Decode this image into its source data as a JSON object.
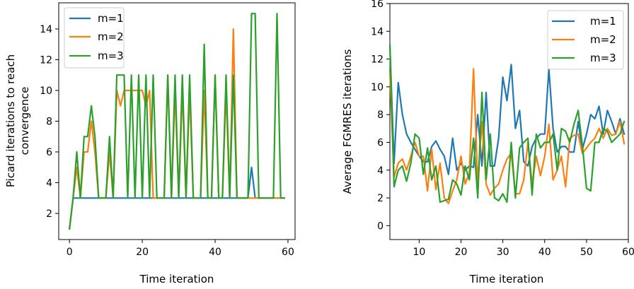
{
  "chart_data": [
    {
      "type": "line",
      "xlabel": "Time iteration",
      "ylabel_lines": [
        "Picard iterations to reach",
        "convergence"
      ],
      "xlim": [
        -2.95,
        61.95
      ],
      "ylim": [
        0.3,
        15.7
      ],
      "xticks": [
        0,
        20,
        40,
        60
      ],
      "yticks": [
        2,
        4,
        6,
        8,
        10,
        12,
        14
      ],
      "legend": "top-left",
      "series": [
        {
          "name": "m=1",
          "color": "#1f77b4",
          "x": [
            0,
            1,
            2,
            3,
            4,
            5,
            6,
            7,
            8,
            9,
            10,
            11,
            12,
            13,
            14,
            15,
            16,
            17,
            18,
            19,
            20,
            21,
            22,
            23,
            24,
            25,
            26,
            27,
            28,
            29,
            30,
            31,
            32,
            33,
            34,
            35,
            36,
            37,
            38,
            39,
            40,
            41,
            42,
            43,
            44,
            45,
            46,
            47,
            48,
            49,
            50,
            51,
            52,
            53,
            54,
            55,
            56,
            57,
            58,
            59
          ],
          "y": [
            1,
            3,
            3,
            3,
            3,
            3,
            3,
            3,
            3,
            3,
            3,
            3,
            3,
            3,
            3,
            3,
            3,
            3,
            3,
            3,
            3,
            3,
            3,
            3,
            3,
            3,
            3,
            3,
            3,
            3,
            3,
            3,
            3,
            3,
            3,
            3,
            3,
            3,
            3,
            3,
            3,
            3,
            3,
            3,
            3,
            3,
            3,
            3,
            3,
            3,
            5,
            3,
            3,
            3,
            3,
            3,
            3,
            3,
            3,
            3
          ]
        },
        {
          "name": "m=2",
          "color": "#ff7f0e",
          "x": [
            0,
            1,
            2,
            3,
            4,
            5,
            6,
            7,
            8,
            9,
            10,
            11,
            12,
            13,
            14,
            15,
            16,
            17,
            18,
            19,
            20,
            21,
            22,
            23,
            24,
            25,
            26,
            27,
            28,
            29,
            30,
            31,
            32,
            33,
            34,
            35,
            36,
            37,
            38,
            39,
            40,
            41,
            42,
            43,
            44,
            45,
            46,
            47,
            48,
            49,
            50,
            51,
            52,
            53,
            54,
            55,
            56,
            57,
            58,
            59
          ],
          "y": [
            1,
            3,
            5,
            3,
            6,
            6,
            8,
            6,
            3,
            3,
            3,
            6,
            3,
            10,
            9,
            10,
            10,
            10,
            10,
            10,
            10,
            9,
            10,
            3,
            3,
            3,
            3,
            11,
            3,
            10,
            3,
            10,
            3,
            10,
            3,
            3,
            3,
            10,
            3,
            3,
            11,
            3,
            3,
            10,
            3,
            14,
            3,
            3,
            3,
            3,
            3,
            3,
            3,
            3,
            3,
            3,
            3,
            3,
            3,
            3
          ]
        },
        {
          "name": "m=3",
          "color": "#2ca02c",
          "x": [
            0,
            1,
            2,
            3,
            4,
            5,
            6,
            7,
            8,
            9,
            10,
            11,
            12,
            13,
            14,
            15,
            16,
            17,
            18,
            19,
            20,
            21,
            22,
            23,
            24,
            25,
            26,
            27,
            28,
            29,
            30,
            31,
            32,
            33,
            34,
            35,
            36,
            37,
            38,
            39,
            40,
            41,
            42,
            43,
            44,
            45,
            46,
            47,
            48,
            49,
            50,
            51,
            52,
            53,
            54,
            55,
            56,
            57,
            58,
            59
          ],
          "y": [
            1,
            3,
            6,
            3,
            7,
            7,
            9,
            7,
            3,
            3,
            3,
            7,
            3,
            11,
            11,
            11,
            3,
            11,
            3,
            11,
            3,
            11,
            3,
            11,
            3,
            3,
            3,
            11,
            3,
            11,
            3,
            11,
            3,
            11,
            3,
            3,
            3,
            13,
            3,
            3,
            11,
            3,
            3,
            11,
            3,
            11,
            3,
            3,
            3,
            3,
            15,
            15,
            3,
            3,
            3,
            3,
            3,
            15,
            3,
            3
          ]
        }
      ]
    },
    {
      "type": "line",
      "xlabel": "Time iteration",
      "ylabel": "Average FGMRES iterations",
      "xlim": [
        3,
        60
      ],
      "ylim": [
        -1,
        16
      ],
      "xticks": [
        10,
        20,
        30,
        40,
        50,
        60
      ],
      "yticks": [
        0,
        2,
        4,
        6,
        8,
        10,
        12,
        14,
        16
      ],
      "legend": "top-right",
      "series": [
        {
          "name": "m=1",
          "color": "#1f77b4",
          "x": [
            3,
            4,
            5,
            6,
            7,
            8,
            9,
            10,
            11,
            12,
            13,
            14,
            15,
            16,
            17,
            18,
            19,
            20,
            21,
            22,
            23,
            24,
            25,
            26,
            27,
            28,
            29,
            30,
            31,
            32,
            33,
            34,
            35,
            36,
            37,
            38,
            39,
            40,
            41,
            42,
            43,
            44,
            45,
            46,
            47,
            48,
            49,
            50,
            51,
            52,
            53,
            54,
            55,
            56,
            57,
            58,
            59
          ],
          "y": [
            13,
            4.5,
            10.3,
            8,
            6.6,
            6.0,
            5.5,
            5.0,
            4.6,
            4.6,
            5.7,
            6.1,
            5.5,
            5.0,
            3.7,
            6.3,
            4.0,
            4.5,
            4.0,
            4.3,
            4.2,
            8.0,
            4.3,
            9.6,
            4.3,
            4.3,
            6.3,
            10.7,
            9.0,
            11.6,
            7.0,
            8.3,
            4.6,
            4.3,
            5.7,
            6.3,
            6.6,
            6.6,
            11.3,
            7.0,
            5.3,
            5.7,
            5.7,
            5.3,
            5.3,
            7.5,
            5.5,
            6.6,
            8.0,
            7.7,
            8.6,
            6.6,
            8.3,
            7.5,
            6.6,
            7.7,
            6.6
          ]
        },
        {
          "name": "m=2",
          "color": "#ff7f0e",
          "x": [
            3,
            4,
            5,
            6,
            7,
            8,
            9,
            10,
            11,
            12,
            13,
            14,
            15,
            16,
            17,
            18,
            19,
            20,
            21,
            22,
            23,
            24,
            25,
            26,
            27,
            28,
            29,
            30,
            31,
            32,
            33,
            34,
            35,
            36,
            37,
            38,
            39,
            40,
            41,
            42,
            43,
            44,
            45,
            46,
            47,
            48,
            49,
            50,
            51,
            52,
            53,
            54,
            55,
            56,
            57,
            58,
            59
          ],
          "y": [
            11,
            3.5,
            4.5,
            4.8,
            4.0,
            5.0,
            6.0,
            5.0,
            5.0,
            2.5,
            5.5,
            2.6,
            4.5,
            2.0,
            1.6,
            2.5,
            3.3,
            5.0,
            3.0,
            3.8,
            11.3,
            3.0,
            7.5,
            3.0,
            2.2,
            2.7,
            3.0,
            4.0,
            4.8,
            5.2,
            2.3,
            2.3,
            3.3,
            6.0,
            3.0,
            5.0,
            3.6,
            5.0,
            7.3,
            3.3,
            4.0,
            5.0,
            2.8,
            6.3,
            6.5,
            6.6,
            5.2,
            5.6,
            6.0,
            6.3,
            7.0,
            6.3,
            7.0,
            6.5,
            6.6,
            7.5,
            5.9
          ]
        },
        {
          "name": "m=3",
          "color": "#2ca02c",
          "x": [
            3,
            4,
            5,
            6,
            7,
            8,
            9,
            10,
            11,
            12,
            13,
            14,
            15,
            16,
            17,
            18,
            19,
            20,
            21,
            22,
            23,
            24,
            25,
            26,
            27,
            28,
            29,
            30,
            31,
            32,
            33,
            34,
            35,
            36,
            37,
            38,
            39,
            40,
            41,
            42,
            43,
            44,
            45,
            46,
            47,
            48,
            49,
            50,
            51,
            52,
            53,
            54,
            55,
            56,
            57,
            58,
            59
          ],
          "y": [
            13,
            2.8,
            4.0,
            4.3,
            3.2,
            4.5,
            6.6,
            6.3,
            3.7,
            5.6,
            3.3,
            4.3,
            1.7,
            1.8,
            1.9,
            3.3,
            3.0,
            2.2,
            4.3,
            3.3,
            6.3,
            2.0,
            9.6,
            3.3,
            6.6,
            2.0,
            1.8,
            2.3,
            1.7,
            6.0,
            2.0,
            5.6,
            6.0,
            6.3,
            2.2,
            6.6,
            5.6,
            6.0,
            6.0,
            6.6,
            4.0,
            7.0,
            6.8,
            6.0,
            7.3,
            8.3,
            5.8,
            2.7,
            2.5,
            6.0,
            6.0,
            7.0,
            6.8,
            6.0,
            6.3,
            6.6,
            7.5
          ]
        }
      ]
    }
  ]
}
